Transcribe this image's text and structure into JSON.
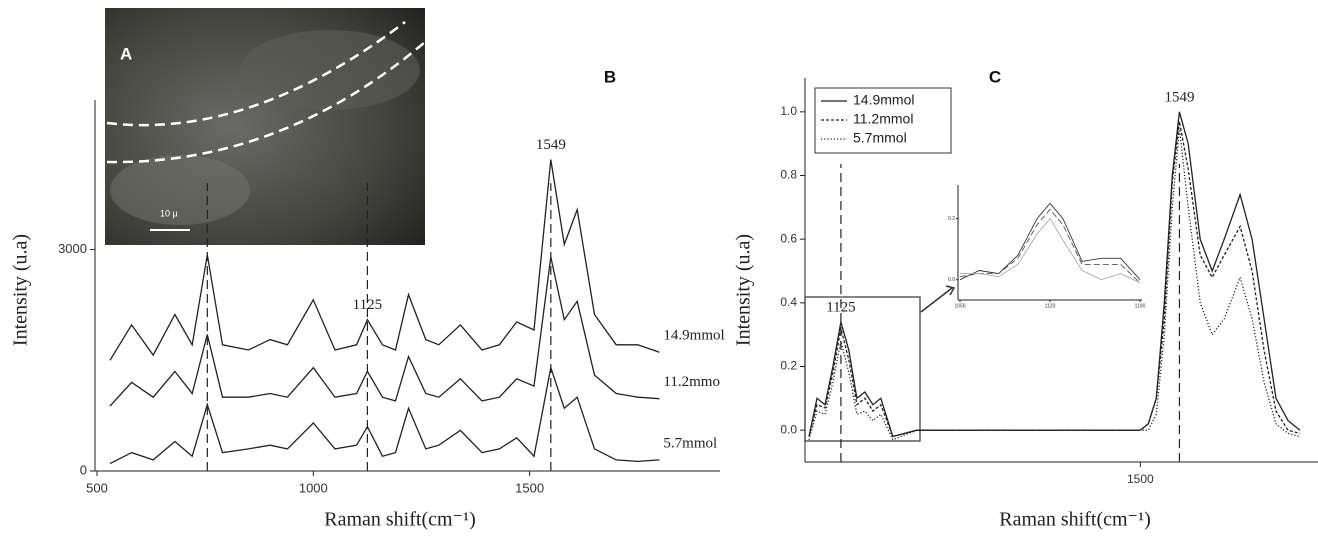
{
  "panel_a": {
    "label": "A",
    "scale_bar": "10 μ"
  },
  "chart_data": [
    {
      "type": "line",
      "panel_label": "B",
      "y_label": "Intensity (u.a)",
      "x_label": "Raman shift(cm⁻¹)",
      "xlim": [
        500,
        1940
      ],
      "ylim": [
        0,
        5000
      ],
      "xticks": [
        500,
        1000,
        1500
      ],
      "yticks": [
        0,
        3000
      ],
      "legend": "line-end",
      "vlines": [
        755,
        1125,
        1549
      ],
      "vline_labeled": [
        false,
        true,
        true
      ],
      "x": [
        530,
        580,
        630,
        680,
        720,
        755,
        790,
        850,
        900,
        940,
        1000,
        1050,
        1100,
        1125,
        1160,
        1190,
        1220,
        1260,
        1290,
        1340,
        1390,
        1430,
        1470,
        1510,
        1549,
        1580,
        1610,
        1650,
        1700,
        1750,
        1800
      ],
      "series": [
        {
          "name": "14.9mmol",
          "color": "#222222",
          "dash": "none",
          "values": [
            1500,
            1980,
            1570,
            2120,
            1710,
            2930,
            1710,
            1640,
            1780,
            1710,
            2320,
            1640,
            1710,
            2050,
            1710,
            1640,
            2390,
            1780,
            1710,
            1980,
            1640,
            1710,
            2020,
            1910,
            4220,
            3070,
            3540,
            2120,
            1710,
            1710,
            1610
          ]
        },
        {
          "name": "11.2mmo",
          "color": "#222222",
          "dash": "none",
          "values": [
            880,
            1200,
            1000,
            1350,
            1050,
            1850,
            1000,
            1000,
            1050,
            1000,
            1400,
            1000,
            1050,
            1350,
            1000,
            950,
            1550,
            1050,
            1000,
            1250,
            950,
            1000,
            1250,
            1150,
            2900,
            2050,
            2300,
            1300,
            1050,
            1000,
            980
          ]
        },
        {
          "name": "5.7mmol",
          "color": "#222222",
          "dash": "none",
          "values": [
            100,
            250,
            150,
            400,
            200,
            900,
            250,
            300,
            350,
            300,
            650,
            300,
            350,
            600,
            200,
            250,
            850,
            300,
            350,
            550,
            250,
            300,
            450,
            200,
            1400,
            850,
            1000,
            300,
            150,
            130,
            150
          ]
        }
      ]
    },
    {
      "type": "line",
      "panel_label": "C",
      "y_label": "Intensity (u.a)",
      "x_label": "Raman shift(cm⁻¹)",
      "xlim": [
        1080,
        1700
      ],
      "ylim": [
        -0.1,
        1.1
      ],
      "xticks": [
        1500
      ],
      "yticks": [
        {
          "value": 0,
          "label": "0.0"
        },
        0.2,
        0.4,
        0.6,
        0.8,
        {
          "value": 1,
          "label": "1.0"
        }
      ],
      "legend": "upper left",
      "vlines": [
        1125,
        1549
      ],
      "vline_labeled": [
        true,
        true
      ],
      "x": [
        1085,
        1095,
        1105,
        1115,
        1125,
        1135,
        1145,
        1155,
        1165,
        1175,
        1190,
        1220,
        1500,
        1510,
        1520,
        1530,
        1540,
        1549,
        1560,
        1575,
        1590,
        1605,
        1625,
        1640,
        1655,
        1670,
        1685,
        1700
      ],
      "series": [
        {
          "name": "14.9mmol",
          "color": "#222222",
          "dash": "none",
          "values": [
            -0.02,
            0.1,
            0.08,
            0.2,
            0.34,
            0.25,
            0.1,
            0.12,
            0.08,
            0.1,
            -0.02,
            0,
            0,
            0.02,
            0.1,
            0.4,
            0.8,
            1.0,
            0.9,
            0.6,
            0.5,
            0.6,
            0.74,
            0.6,
            0.35,
            0.1,
            0.03,
            0
          ]
        },
        {
          "name": "11.2mmol",
          "color": "#222222",
          "dash": "3,2",
          "values": [
            -0.02,
            0.08,
            0.07,
            0.18,
            0.32,
            0.22,
            0.08,
            0.1,
            0.06,
            0.08,
            -0.02,
            0,
            0,
            0.02,
            0.1,
            0.35,
            0.78,
            0.97,
            0.82,
            0.55,
            0.48,
            0.55,
            0.64,
            0.5,
            0.25,
            0.06,
            0,
            -0.01
          ]
        },
        {
          "name": "5.7mmol",
          "color": "#222222",
          "dash": "1.2,2",
          "values": [
            -0.03,
            0.06,
            0.05,
            0.15,
            0.28,
            0.18,
            0.05,
            0.06,
            0.03,
            0.05,
            -0.03,
            0,
            0,
            0,
            0.05,
            0.3,
            0.7,
            0.95,
            0.7,
            0.4,
            0.3,
            0.35,
            0.48,
            0.35,
            0.15,
            0.02,
            -0.01,
            -0.02
          ]
        }
      ]
    },
    {
      "type": "line",
      "xlim": [
        1050,
        1190
      ],
      "ylim": [
        -0.05,
        0.3
      ],
      "xticks": [
        1050,
        1120,
        1190
      ],
      "yticks": [
        {
          "value": 0,
          "label": "0.0"
        },
        0.2
      ],
      "x": [
        1050,
        1065,
        1080,
        1095,
        1110,
        1120,
        1130,
        1145,
        1160,
        1175,
        1190
      ],
      "series": [
        {
          "color": "#333333",
          "dash": "none",
          "values": [
            0,
            0.03,
            0.02,
            0.08,
            0.2,
            0.25,
            0.2,
            0.06,
            0.07,
            0.07,
            0
          ]
        },
        {
          "color": "#555555",
          "dash": "6,3",
          "values": [
            0.01,
            0.02,
            0.02,
            0.07,
            0.18,
            0.23,
            0.18,
            0.05,
            0.05,
            0.05,
            -0.01
          ]
        },
        {
          "color": "#aaaaaa",
          "dash": "none",
          "values": [
            0.02,
            0.02,
            0.01,
            0.05,
            0.15,
            0.2,
            0.13,
            0.03,
            0,
            0.02,
            -0.01
          ]
        }
      ]
    }
  ]
}
